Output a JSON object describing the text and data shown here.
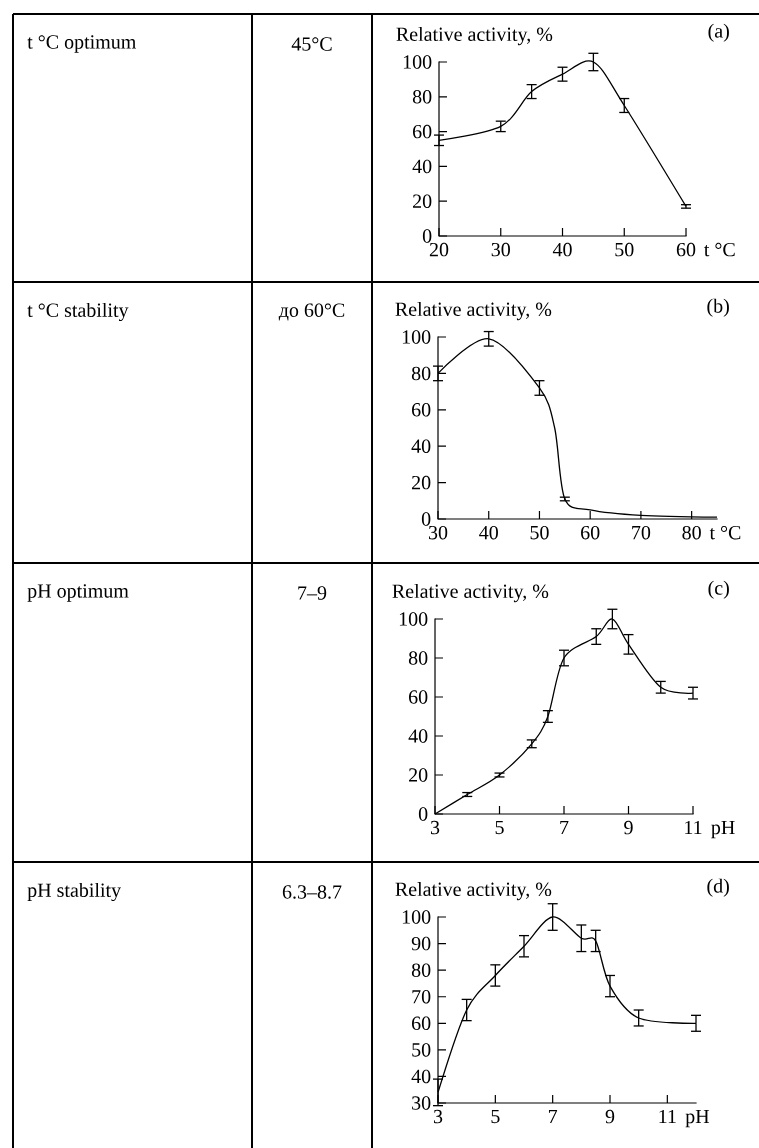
{
  "chart_data": [
    {
      "type": "line",
      "ylabel": "Relative activity, %",
      "xlabel": "t °C",
      "annotations": [
        "(a)",
        "t °C optimum",
        "45°C"
      ],
      "color": "#000000",
      "x": [
        20,
        30,
        35,
        40,
        45,
        50,
        60
      ],
      "values": [
        55,
        63,
        83,
        93,
        100,
        75,
        17
      ],
      "errors": [
        3,
        3,
        4,
        4,
        5,
        4,
        1
      ],
      "xlim": [
        20,
        60
      ],
      "ylim": [
        0,
        100
      ],
      "xticks": [
        20,
        30,
        40,
        50,
        60
      ],
      "yticks": [
        0,
        20,
        40,
        60,
        80,
        100
      ]
    },
    {
      "type": "line",
      "ylabel": "Relative activity, %",
      "xlabel": "t °C",
      "annotations": [
        "(b)",
        "t °C stability",
        "до 60°C"
      ],
      "color": "#000000",
      "x": [
        30,
        40,
        50,
        53,
        55,
        60,
        70,
        85
      ],
      "values": [
        80,
        99,
        72,
        50,
        11,
        5,
        2,
        1
      ],
      "errors": [
        4,
        4,
        4,
        null,
        1,
        null,
        null,
        null
      ],
      "xlim": [
        30,
        85
      ],
      "ylim": [
        0,
        100
      ],
      "xticks": [
        30,
        40,
        50,
        60,
        70,
        80
      ],
      "yticks": [
        0,
        20,
        40,
        60,
        80,
        100
      ]
    },
    {
      "type": "line",
      "ylabel": "Relative activity, %",
      "xlabel": "pH",
      "annotations": [
        "(c)",
        "pH optimum",
        "7–9"
      ],
      "color": "#000000",
      "x": [
        3,
        4,
        5,
        6,
        6.5,
        7,
        8,
        8.5,
        9,
        10,
        11
      ],
      "values": [
        0,
        10,
        20,
        36,
        50,
        80,
        91,
        100,
        87,
        65,
        62
      ],
      "errors": [
        null,
        1,
        1,
        2,
        3,
        4,
        4,
        5,
        5,
        3,
        3
      ],
      "xlim": [
        3,
        11
      ],
      "ylim": [
        0,
        100
      ],
      "xticks": [
        3,
        5,
        7,
        9,
        11
      ],
      "yticks": [
        0,
        20,
        40,
        60,
        80,
        100
      ]
    },
    {
      "type": "line",
      "ylabel": "Relative activity, %",
      "xlabel": "pH",
      "annotations": [
        "(d)",
        "pH stability",
        "6.3–8.7"
      ],
      "color": "#000000",
      "x": [
        3,
        4,
        5,
        6,
        7,
        8,
        8.5,
        9,
        10,
        12
      ],
      "values": [
        34,
        65,
        78,
        89,
        100,
        92,
        91,
        74,
        62,
        60
      ],
      "errors": [
        5,
        4,
        4,
        4,
        5,
        5,
        4,
        4,
        3,
        3
      ],
      "xlim": [
        3,
        12
      ],
      "ylim": [
        30,
        100
      ],
      "xticks": [
        3,
        5,
        7,
        9,
        11
      ],
      "yticks": [
        30,
        40,
        50,
        60,
        70,
        80,
        90,
        100
      ]
    }
  ]
}
